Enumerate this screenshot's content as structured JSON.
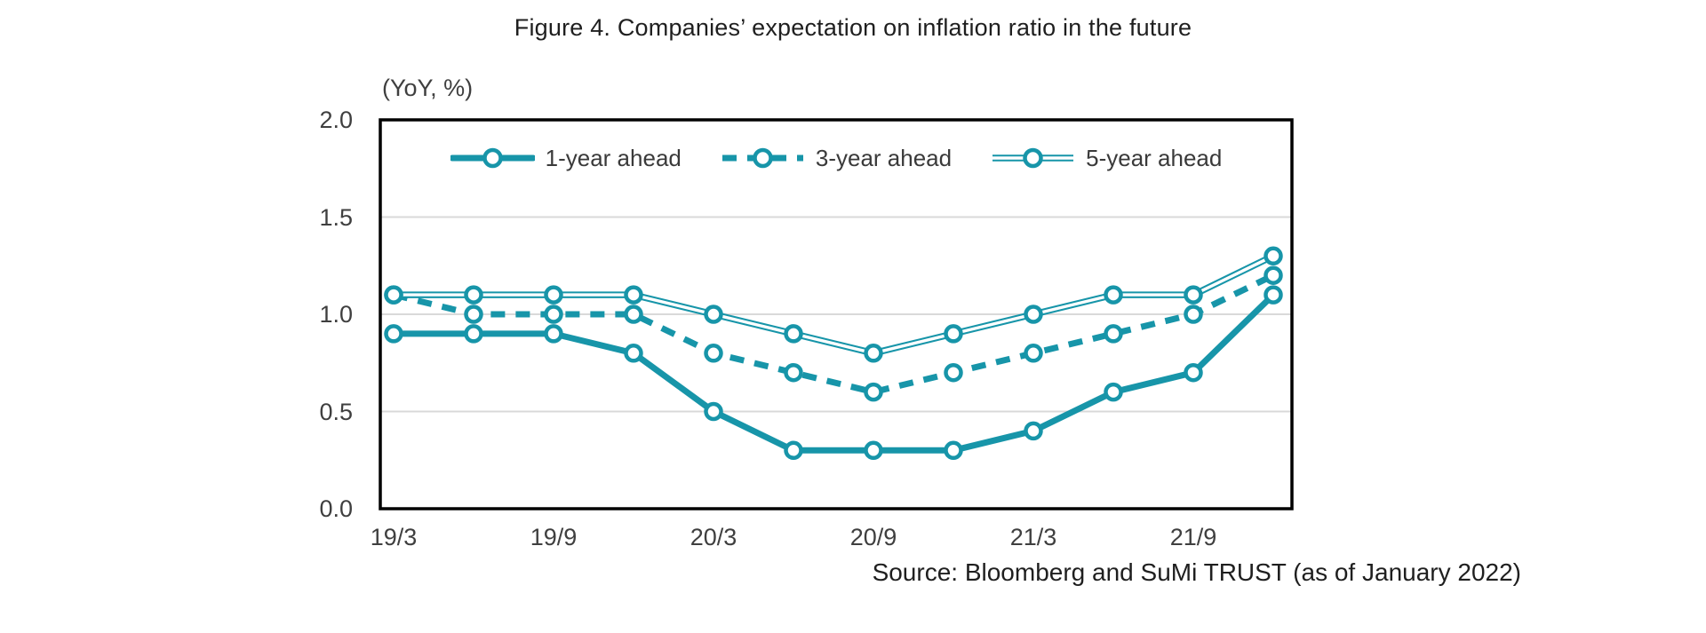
{
  "source_note": "Source: Bloomberg and SuMi TRUST (as of January 2022)",
  "colors": {
    "series_teal": "#1795a9",
    "gridline": "#d9d9d9",
    "axis_border": "#000000",
    "marker_fill": "#ffffff",
    "text_primary": "#1f1f1f",
    "text_secondary": "#3f3f3f"
  },
  "chart_data": {
    "type": "line",
    "title": "Figure 4. Companies’ expectation on inflation ratio in the future",
    "unit_label": "(YoY, %)",
    "categories": [
      "19/3",
      "19/6",
      "19/9",
      "19/12",
      "20/3",
      "20/6",
      "20/9",
      "20/12",
      "21/3",
      "21/6",
      "21/9",
      "21/12"
    ],
    "x_ticks": [
      {
        "label": "19/3",
        "index": 0
      },
      {
        "label": "19/9",
        "index": 2
      },
      {
        "label": "20/3",
        "index": 4
      },
      {
        "label": "20/9",
        "index": 6
      },
      {
        "label": "21/3",
        "index": 8
      },
      {
        "label": "21/9",
        "index": 10
      }
    ],
    "y_ticks": [
      0.0,
      0.5,
      1.0,
      1.5,
      2.0
    ],
    "ylim": [
      0.0,
      2.0
    ],
    "grid": "horizontal",
    "legend_position": "top-inside",
    "series": [
      {
        "name": "1-year ahead",
        "line_style": "solid-thick",
        "marker": "open-circle",
        "values": [
          0.9,
          0.9,
          0.9,
          0.8,
          0.5,
          0.3,
          0.3,
          0.3,
          0.4,
          0.6,
          0.7,
          1.1
        ]
      },
      {
        "name": "3-year ahead",
        "line_style": "dashed",
        "marker": "open-circle",
        "values": [
          1.1,
          1.0,
          1.0,
          1.0,
          0.8,
          0.7,
          0.6,
          0.7,
          0.8,
          0.9,
          1.0,
          1.2
        ]
      },
      {
        "name": "5-year ahead",
        "line_style": "double-thin",
        "marker": "open-circle",
        "values": [
          1.1,
          1.1,
          1.1,
          1.1,
          1.0,
          0.9,
          0.8,
          0.9,
          1.0,
          1.1,
          1.1,
          1.3
        ]
      }
    ]
  }
}
